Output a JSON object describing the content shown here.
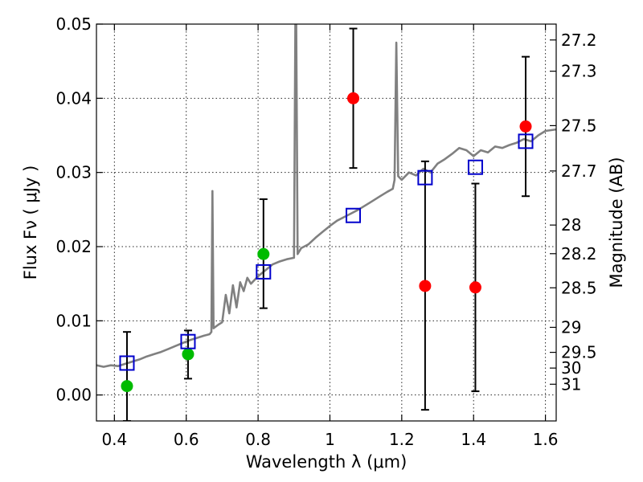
{
  "chart_data": {
    "type": "scatter",
    "xlabel": "Wavelength  λ (μm)",
    "ylabel": "Flux  Fν  ( μJy )",
    "ylabel_right": "Magnitude (AB)",
    "xlim": [
      0.35,
      1.63
    ],
    "ylim": [
      -0.0035,
      0.05
    ],
    "grid": true,
    "x_ticks": [
      0.4,
      0.6,
      0.8,
      1.0,
      1.2,
      1.4,
      1.6
    ],
    "x_tick_labels": [
      "0.4",
      "0.6",
      "0.8",
      "1",
      "1.2",
      "1.4",
      "1.6"
    ],
    "y_ticks": [
      0.0,
      0.01,
      0.02,
      0.03,
      0.04,
      0.05
    ],
    "y_tick_labels": [
      "0.00",
      "0.01",
      "0.02",
      "0.03",
      "0.04",
      "0.05"
    ],
    "magnitude_ticks": [
      {
        "label": "27.2",
        "flux": 0.04786
      },
      {
        "label": "27.3",
        "flux": 0.04365
      },
      {
        "label": "27.5",
        "flux": 0.03631
      },
      {
        "label": "27.7",
        "flux": 0.0302
      },
      {
        "label": "28",
        "flux": 0.02291
      },
      {
        "label": "28.2",
        "flux": 0.01905
      },
      {
        "label": "28.5",
        "flux": 0.01445
      },
      {
        "label": "29",
        "flux": 0.00912
      },
      {
        "label": "29.5",
        "flux": 0.00575
      },
      {
        "label": "30",
        "flux": 0.00363
      },
      {
        "label": "31",
        "flux": 0.00145
      }
    ],
    "series": [
      {
        "kind": "line",
        "color": "#808080",
        "points": [
          [
            0.35,
            0.004
          ],
          [
            0.37,
            0.0038
          ],
          [
            0.39,
            0.004
          ],
          [
            0.41,
            0.0039
          ],
          [
            0.43,
            0.0042
          ],
          [
            0.45,
            0.0045
          ],
          [
            0.47,
            0.0048
          ],
          [
            0.49,
            0.0052
          ],
          [
            0.51,
            0.0055
          ],
          [
            0.53,
            0.0058
          ],
          [
            0.55,
            0.0062
          ],
          [
            0.57,
            0.0066
          ],
          [
            0.59,
            0.007
          ],
          [
            0.61,
            0.0074
          ],
          [
            0.63,
            0.0077
          ],
          [
            0.65,
            0.008
          ],
          [
            0.665,
            0.0082
          ],
          [
            0.67,
            0.0085
          ],
          [
            0.673,
            0.0275
          ],
          [
            0.676,
            0.009
          ],
          [
            0.69,
            0.0095
          ],
          [
            0.7,
            0.0098
          ],
          [
            0.71,
            0.0135
          ],
          [
            0.72,
            0.011
          ],
          [
            0.73,
            0.0148
          ],
          [
            0.74,
            0.0118
          ],
          [
            0.75,
            0.0152
          ],
          [
            0.76,
            0.014
          ],
          [
            0.77,
            0.0158
          ],
          [
            0.78,
            0.015
          ],
          [
            0.8,
            0.016
          ],
          [
            0.82,
            0.0168
          ],
          [
            0.84,
            0.0176
          ],
          [
            0.86,
            0.018
          ],
          [
            0.88,
            0.0183
          ],
          [
            0.9,
            0.0185
          ],
          [
            0.905,
            0.06
          ],
          [
            0.91,
            0.019
          ],
          [
            0.92,
            0.0198
          ],
          [
            0.94,
            0.0203
          ],
          [
            0.96,
            0.0212
          ],
          [
            0.98,
            0.022
          ],
          [
            1.0,
            0.0228
          ],
          [
            1.02,
            0.0235
          ],
          [
            1.04,
            0.024
          ],
          [
            1.06,
            0.0245
          ],
          [
            1.08,
            0.025
          ],
          [
            1.1,
            0.0256
          ],
          [
            1.12,
            0.0262
          ],
          [
            1.14,
            0.0268
          ],
          [
            1.16,
            0.0274
          ],
          [
            1.175,
            0.0278
          ],
          [
            1.18,
            0.029
          ],
          [
            1.185,
            0.0475
          ],
          [
            1.19,
            0.0295
          ],
          [
            1.2,
            0.029
          ],
          [
            1.22,
            0.03
          ],
          [
            1.24,
            0.0296
          ],
          [
            1.26,
            0.0305
          ],
          [
            1.28,
            0.03
          ],
          [
            1.3,
            0.0312
          ],
          [
            1.32,
            0.0318
          ],
          [
            1.34,
            0.0325
          ],
          [
            1.36,
            0.0333
          ],
          [
            1.38,
            0.033
          ],
          [
            1.4,
            0.0322
          ],
          [
            1.42,
            0.033
          ],
          [
            1.44,
            0.0327
          ],
          [
            1.46,
            0.0335
          ],
          [
            1.48,
            0.0333
          ],
          [
            1.5,
            0.0337
          ],
          [
            1.52,
            0.034
          ],
          [
            1.54,
            0.0345
          ],
          [
            1.56,
            0.0342
          ],
          [
            1.58,
            0.035
          ],
          [
            1.6,
            0.0356
          ],
          [
            1.63,
            0.0358
          ]
        ]
      },
      {
        "kind": "errorbar-points",
        "color": "#00bb00",
        "points": [
          {
            "x": 0.435,
            "y": 0.0012,
            "lo": -0.0035,
            "hi": 0.0085
          },
          {
            "x": 0.605,
            "y": 0.0055,
            "lo": 0.0022,
            "hi": 0.0087
          },
          {
            "x": 0.815,
            "y": 0.019,
            "lo": 0.0117,
            "hi": 0.0264
          }
        ]
      },
      {
        "kind": "errorbar-points",
        "color": "#ff0000",
        "points": [
          {
            "x": 1.065,
            "y": 0.04,
            "lo": 0.0306,
            "hi": 0.0494
          },
          {
            "x": 1.265,
            "y": 0.0147,
            "lo": -0.002,
            "hi": 0.0315
          },
          {
            "x": 1.405,
            "y": 0.0145,
            "lo": 0.0005,
            "hi": 0.0285
          },
          {
            "x": 1.545,
            "y": 0.0362,
            "lo": 0.0268,
            "hi": 0.0456
          }
        ]
      },
      {
        "kind": "squares",
        "color": "#0000cc",
        "points": [
          {
            "x": 0.435,
            "y": 0.0043
          },
          {
            "x": 0.605,
            "y": 0.0072
          },
          {
            "x": 0.815,
            "y": 0.0166
          },
          {
            "x": 1.065,
            "y": 0.0242
          },
          {
            "x": 1.265,
            "y": 0.0293
          },
          {
            "x": 1.405,
            "y": 0.0307
          },
          {
            "x": 1.545,
            "y": 0.0342
          }
        ]
      }
    ]
  }
}
